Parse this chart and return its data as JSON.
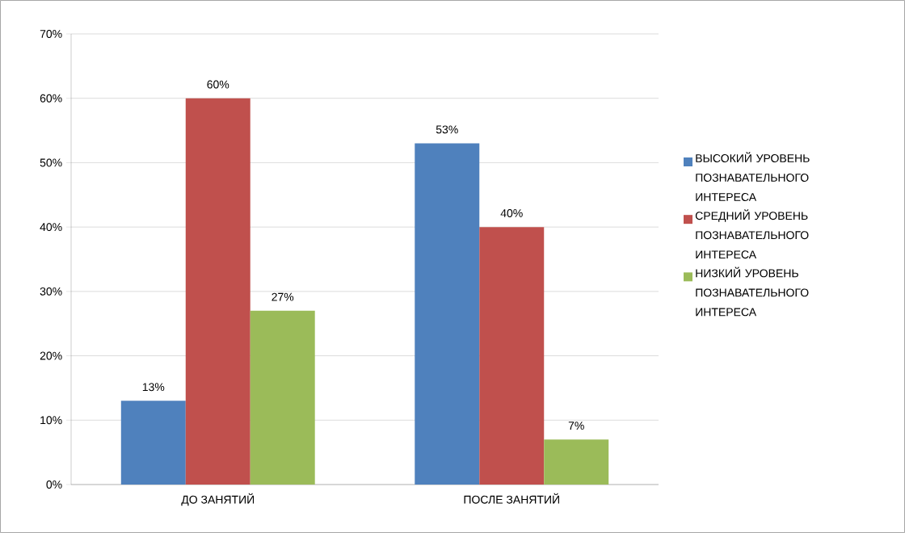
{
  "chart_data": {
    "type": "bar",
    "categories": [
      "ДО ЗАНЯТИЙ",
      "ПОСЛЕ ЗАНЯТИЙ"
    ],
    "series": [
      {
        "name": "ВЫСОКИЙ УРОВЕНЬ ПОЗНАВАТЕЛЬНОГО ИНТЕРЕСА",
        "color": "#4f81bd",
        "values": [
          13,
          53
        ],
        "value_labels": [
          "13%",
          "53%"
        ]
      },
      {
        "name": "СРЕДНИЙ УРОВЕНЬ ПОЗНАВАТЕЛЬНОГО ИНТЕРЕСА",
        "color": "#c0504d",
        "values": [
          60,
          40
        ],
        "value_labels": [
          "60%",
          "40%"
        ]
      },
      {
        "name": "НИЗКИЙ УРОВЕНЬ ПОЗНАВАТЕЛЬНОГО ИНТЕРЕСА",
        "color": "#9bbb59",
        "values": [
          27,
          7
        ],
        "value_labels": [
          "27%",
          "7%"
        ]
      }
    ],
    "ylim": [
      0,
      70
    ],
    "yticks": [
      {
        "value": 0,
        "label": "0%"
      },
      {
        "value": 10,
        "label": "10%"
      },
      {
        "value": 20,
        "label": "20%"
      },
      {
        "value": 30,
        "label": "30%"
      },
      {
        "value": 40,
        "label": "40%"
      },
      {
        "value": 50,
        "label": "50%"
      },
      {
        "value": 60,
        "label": "60%"
      },
      {
        "value": 70,
        "label": "70%"
      }
    ],
    "grid": "y",
    "legend": "right"
  }
}
